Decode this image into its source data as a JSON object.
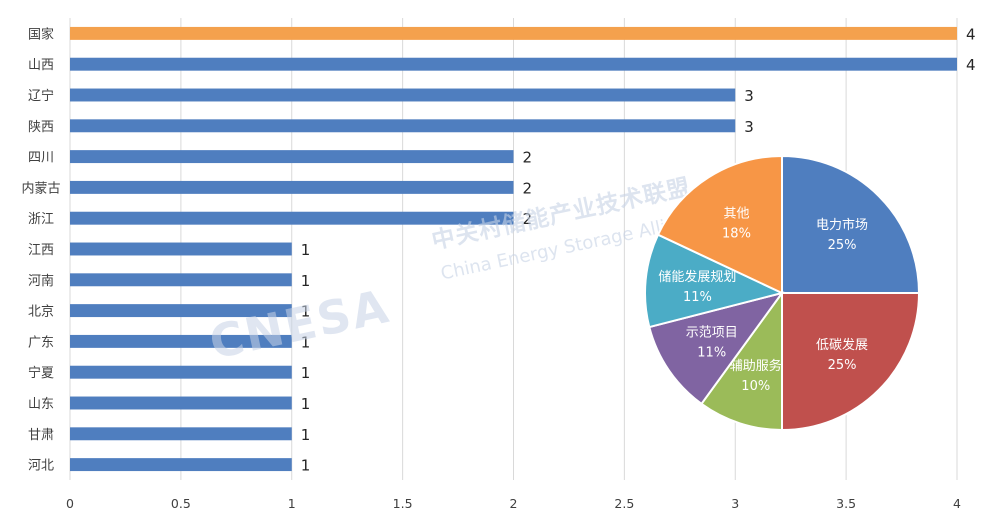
{
  "chart_data": [
    {
      "type": "bar",
      "orientation": "horizontal",
      "categories": [
        "国家",
        "山西",
        "辽宁",
        "陕西",
        "四川",
        "内蒙古",
        "浙江",
        "江西",
        "河南",
        "北京",
        "广东",
        "宁夏",
        "山东",
        "甘肃",
        "河北"
      ],
      "values": [
        4,
        4,
        3,
        3,
        2,
        2,
        2,
        1,
        1,
        1,
        1,
        1,
        1,
        1,
        1
      ],
      "highlight_index": 0,
      "xlim": [
        0,
        4
      ],
      "xticks": [
        "0",
        "0.5",
        "1",
        "1.5",
        "2",
        "2.5",
        "3",
        "3.5",
        "4"
      ],
      "grid": "vertical",
      "colors": {
        "bar": "#4f7ebf",
        "highlight": "#f4a14d",
        "grid": "#d9d9d9"
      }
    },
    {
      "type": "pie",
      "slices": [
        {
          "label": "电力市场",
          "value": 25,
          "text": "25%",
          "color": "#4f7ebf"
        },
        {
          "label": "低碳发展",
          "value": 25,
          "text": "25%",
          "color": "#c0504d"
        },
        {
          "label": "辅助服务",
          "value": 10,
          "text": "10%",
          "color": "#9bbb59"
        },
        {
          "label": "示范项目",
          "value": 11,
          "text": "11%",
          "color": "#8064a2"
        },
        {
          "label": "储能发展规划",
          "value": 11,
          "text": "11%",
          "color": "#4bacc6"
        },
        {
          "label": "其他",
          "value": 18,
          "text": "18%",
          "color": "#f79646"
        }
      ]
    }
  ],
  "watermark": {
    "logo": "CNESA",
    "cn": "中关村储能产业技术联盟",
    "en": "China Energy Storage Alliance"
  }
}
